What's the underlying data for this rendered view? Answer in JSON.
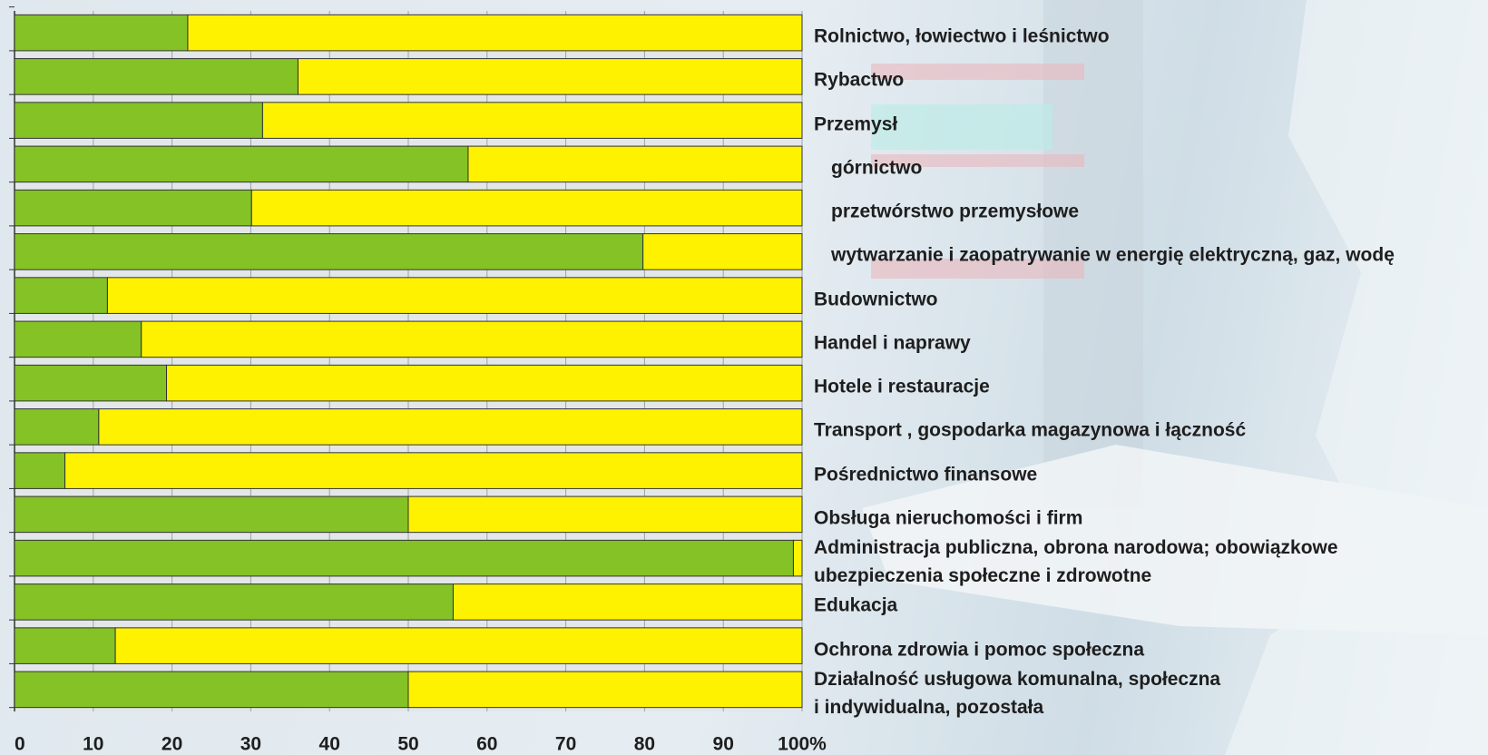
{
  "chart_data": {
    "type": "stacked-bar-horizontal",
    "categories": [
      "Rolnictwo, łowiectwo i leśnictwo",
      "Rybactwo",
      "Przemysł",
      "górnictwo",
      "przetwórstwo przemysłowe",
      "wytwarzanie i zaopatrywanie w energię elektryczną,  gaz, wodę",
      "Budownictwo",
      "Handel i naprawy",
      "Hotele i restauracje",
      "Transport , gospodarka magazynowa i łączność",
      "Pośrednictwo finansowe",
      "Obsługa nieruchomości i firm",
      "Administracja publiczna, obrona narodowa; obowiązkowe\nubezpieczenia społeczne i zdrowotne",
      "Edukacja",
      "Ochrona zdrowia i pomoc społeczna",
      "Działalność usługowa komunalna, społeczna\ni indywidualna, pozostała"
    ],
    "series": [
      {
        "color": "#84c225",
        "values": [
          22,
          36,
          31.5,
          57.6,
          30.1,
          79.8,
          11.8,
          16.1,
          19.3,
          10.7,
          6.4,
          50,
          98.9,
          55.7,
          12.8,
          50
        ]
      },
      {
        "color": "#fff200",
        "values": [
          78,
          64,
          68.5,
          42.4,
          69.9,
          20.2,
          88.2,
          83.9,
          80.7,
          89.3,
          93.6,
          50,
          1.1,
          44.3,
          87.2,
          50
        ]
      }
    ],
    "xlim": [
      0,
      100
    ],
    "xticks": [
      0,
      10,
      20,
      30,
      40,
      50,
      60,
      70,
      80,
      90,
      {
        "value": 100,
        "label": "100%"
      }
    ],
    "grid": true
  }
}
